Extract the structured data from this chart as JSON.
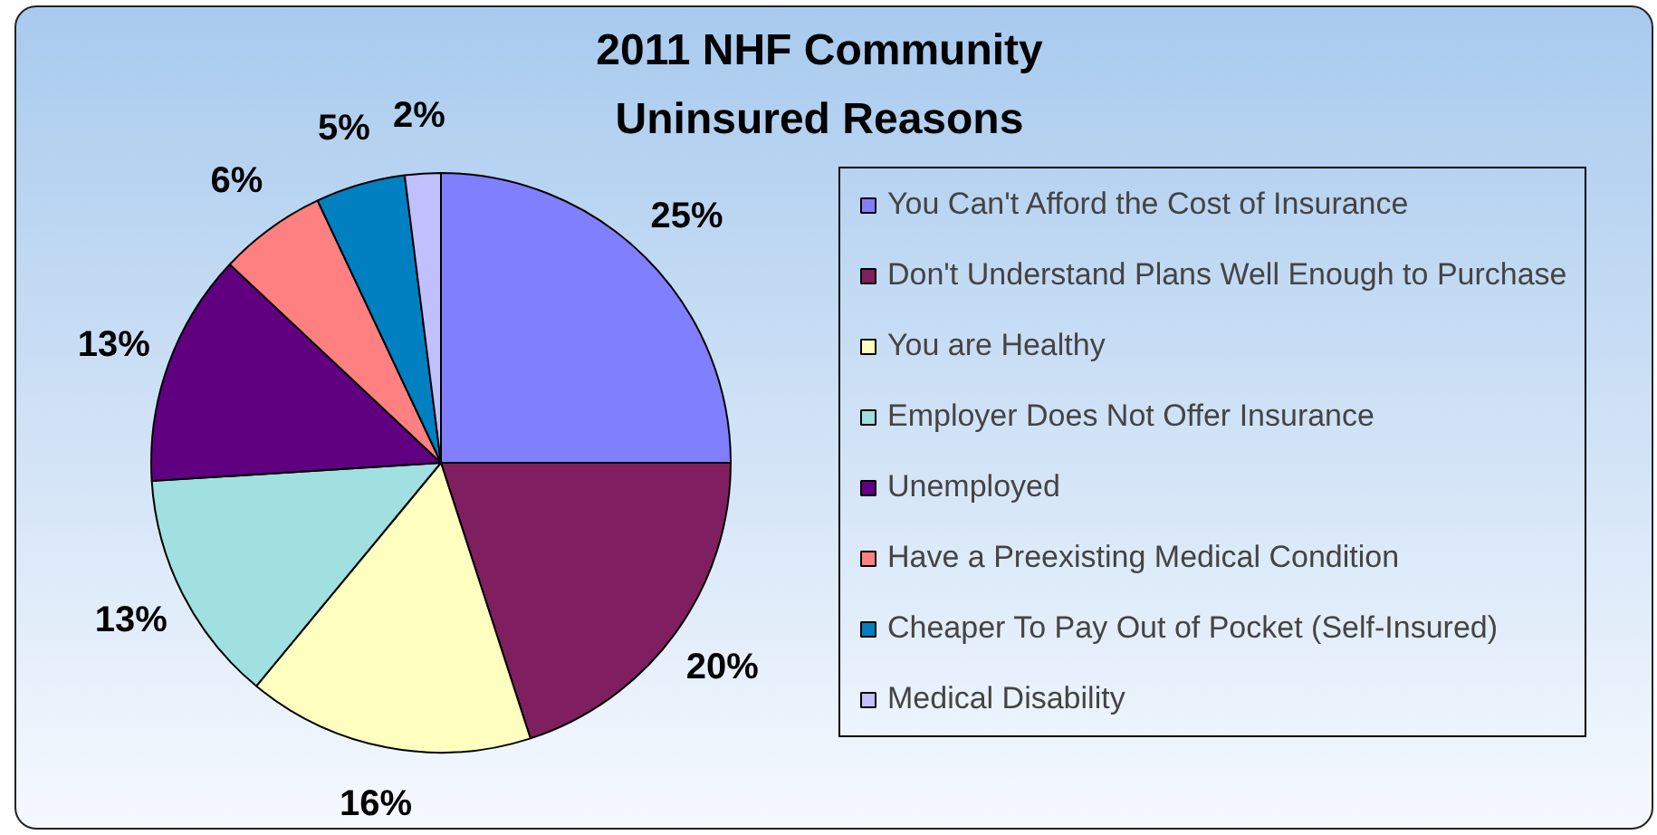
{
  "chart_data": {
    "type": "pie",
    "title": "2011 NHF Community Uninsured Reasons",
    "categories": [
      "You Can't Afford the Cost of Insurance",
      "Don't Understand Plans Well Enough to Purchase",
      "You are Healthy",
      "Employer Does Not Offer Insurance",
      "Unemployed",
      "Have a Preexisting Medical Condition",
      "Cheaper To Pay Out of Pocket (Self-Insured)",
      "Medical Disability"
    ],
    "values": [
      25,
      20,
      16,
      13,
      13,
      6,
      5,
      2
    ],
    "colors": [
      "#8080ff",
      "#7f1f5f",
      "#ffffc0",
      "#a0e0e0",
      "#600080",
      "#ff8080",
      "#0080c0",
      "#c0c0ff"
    ],
    "value_labels": [
      "25%",
      "20%",
      "16%",
      "13%",
      "13%",
      "6%",
      "5%",
      "2%"
    ],
    "legend": "right"
  }
}
